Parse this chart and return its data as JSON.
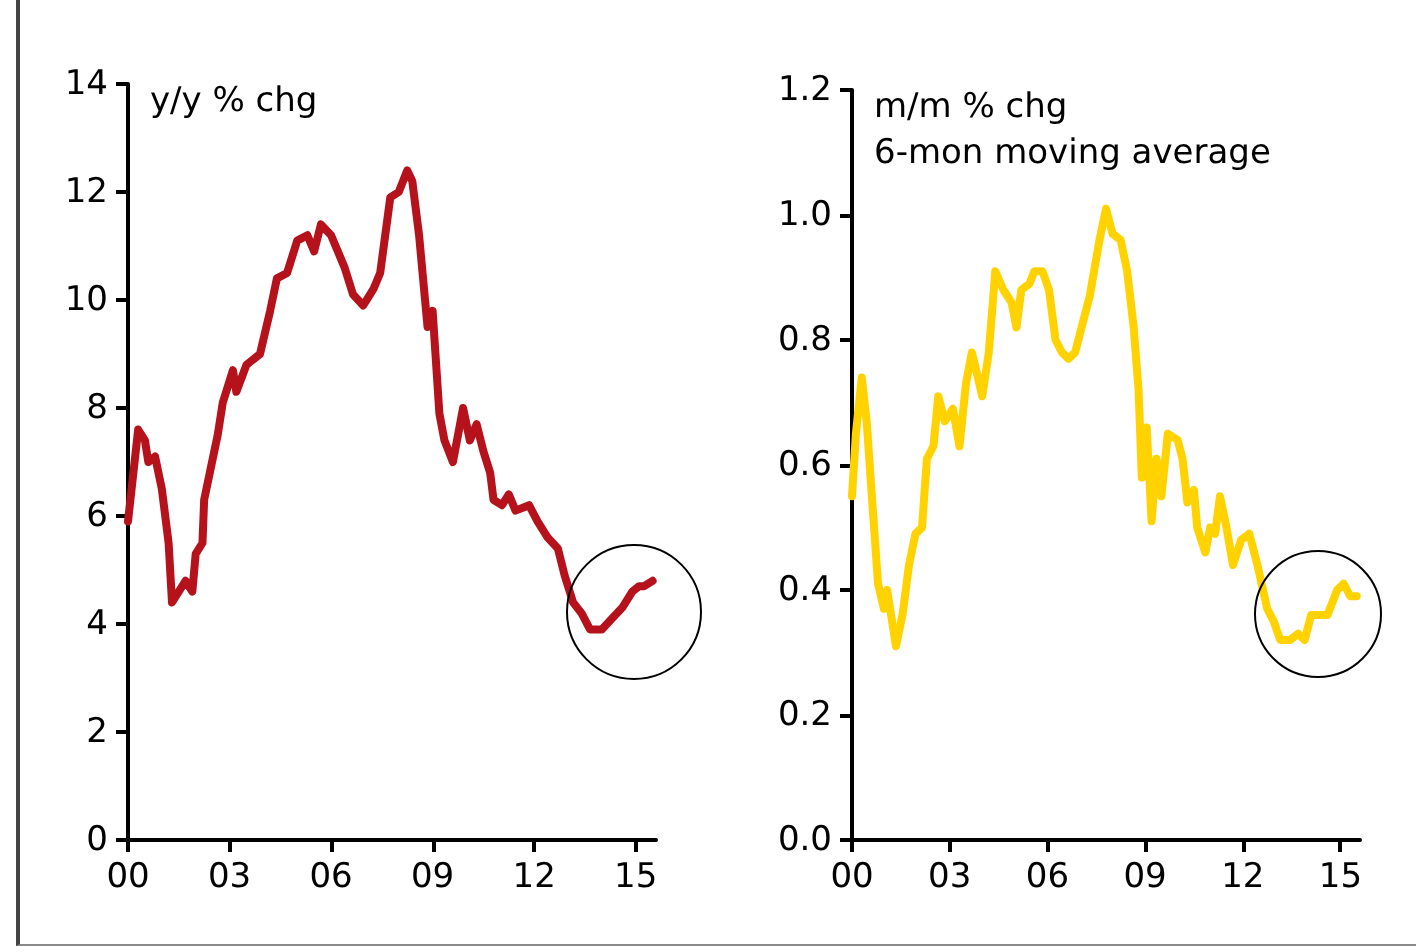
{
  "chart_data": [
    {
      "type": "line",
      "ylabel": "y/y % chg",
      "xlim": [
        2000,
        2015.6
      ],
      "xticks": [
        {
          "value": 2000,
          "label": "00"
        },
        {
          "value": 2003,
          "label": "03"
        },
        {
          "value": 2006,
          "label": "06"
        },
        {
          "value": 2009,
          "label": "09"
        },
        {
          "value": 2012,
          "label": "12"
        },
        {
          "value": 2015,
          "label": "15"
        }
      ],
      "ylim": [
        0,
        14
      ],
      "yticks": [
        0,
        2,
        4,
        6,
        8,
        10,
        12,
        14
      ],
      "series": [
        {
          "color": "#b5121b",
          "x": [
            2000.0,
            2000.3,
            2000.5,
            2000.6,
            2000.8,
            2001.0,
            2001.2,
            2001.3,
            2001.5,
            2001.7,
            2001.9,
            2002.0,
            2002.2,
            2002.25,
            2002.45,
            2002.65,
            2002.8,
            2003.0,
            2003.1,
            2003.2,
            2003.5,
            2003.9,
            2004.2,
            2004.4,
            2004.7,
            2005.0,
            2005.3,
            2005.5,
            2005.7,
            2006.0,
            2006.4,
            2006.65,
            2006.95,
            2007.25,
            2007.45,
            2007.75,
            2008.0,
            2008.25,
            2008.4,
            2008.6,
            2008.85,
            2009.0,
            2009.2,
            2009.35,
            2009.6,
            2009.9,
            2010.1,
            2010.3,
            2010.5,
            2010.7,
            2010.8,
            2011.05,
            2011.25,
            2011.45,
            2011.85,
            2012.1,
            2012.4,
            2012.7,
            2012.9,
            2013.15,
            2013.4,
            2013.65,
            2014.0,
            2014.3,
            2014.6,
            2014.9,
            2015.1,
            2015.25,
            2015.5
          ],
          "values": [
            5.9,
            7.6,
            7.4,
            7.0,
            7.1,
            6.5,
            5.5,
            4.4,
            4.6,
            4.8,
            4.6,
            5.3,
            5.5,
            6.3,
            6.9,
            7.5,
            8.1,
            8.5,
            8.7,
            8.3,
            8.8,
            9.0,
            9.8,
            10.4,
            10.5,
            11.1,
            11.2,
            10.9,
            11.4,
            11.2,
            10.6,
            10.1,
            9.9,
            10.2,
            10.5,
            11.9,
            12.0,
            12.4,
            12.2,
            11.2,
            9.5,
            9.8,
            7.9,
            7.4,
            7.0,
            8.0,
            7.4,
            7.7,
            7.2,
            6.8,
            6.3,
            6.2,
            6.4,
            6.1,
            6.2,
            5.9,
            5.6,
            5.4,
            4.9,
            4.4,
            4.2,
            3.9,
            3.9,
            4.1,
            4.3,
            4.6,
            4.7,
            4.7,
            4.8
          ]
        }
      ]
    },
    {
      "type": "line",
      "ylabel": "m/m % chg\n6-mon moving average",
      "xlim": [
        2000,
        2015.6
      ],
      "xticks": [
        {
          "value": 2000,
          "label": "00"
        },
        {
          "value": 2003,
          "label": "03"
        },
        {
          "value": 2006,
          "label": "06"
        },
        {
          "value": 2009,
          "label": "09"
        },
        {
          "value": 2012,
          "label": "12"
        },
        {
          "value": 2015,
          "label": "15"
        }
      ],
      "ylim": [
        0,
        1.2
      ],
      "yticks": [
        {
          "value": 0,
          "label": "0.0"
        },
        {
          "value": 0.2,
          "label": "0.2"
        },
        {
          "value": 0.4,
          "label": "0.4"
        },
        {
          "value": 0.6,
          "label": "0.6"
        },
        {
          "value": 0.8,
          "label": "0.8"
        },
        {
          "value": 1.0,
          "label": "1.0"
        },
        {
          "value": 1.2,
          "label": "1.2"
        }
      ],
      "series": [
        {
          "color": "#ffd200",
          "x": [
            2000.0,
            2000.12,
            2000.3,
            2000.45,
            2000.65,
            2000.8,
            2000.98,
            2001.08,
            2001.2,
            2001.35,
            2001.55,
            2001.75,
            2001.95,
            2002.15,
            2002.3,
            2002.5,
            2002.65,
            2002.85,
            2003.1,
            2003.3,
            2003.5,
            2003.68,
            2003.82,
            2004.0,
            2004.2,
            2004.4,
            2004.65,
            2004.9,
            2005.05,
            2005.2,
            2005.45,
            2005.6,
            2005.85,
            2006.05,
            2006.25,
            2006.45,
            2006.65,
            2006.85,
            2007.05,
            2007.3,
            2007.6,
            2007.8,
            2008.0,
            2008.25,
            2008.45,
            2008.65,
            2008.8,
            2008.9,
            2009.05,
            2009.2,
            2009.35,
            2009.5,
            2009.7,
            2010.0,
            2010.15,
            2010.3,
            2010.5,
            2010.6,
            2010.85,
            2011.0,
            2011.15,
            2011.3,
            2011.5,
            2011.7,
            2011.95,
            2012.2,
            2012.45,
            2012.75,
            2012.95,
            2013.15,
            2013.45,
            2013.7,
            2013.9,
            2014.1,
            2014.3,
            2014.6,
            2014.9,
            2015.1,
            2015.3,
            2015.5
          ],
          "values": [
            0.55,
            0.65,
            0.74,
            0.67,
            0.52,
            0.41,
            0.37,
            0.4,
            0.36,
            0.31,
            0.36,
            0.44,
            0.49,
            0.5,
            0.61,
            0.63,
            0.71,
            0.67,
            0.69,
            0.63,
            0.73,
            0.78,
            0.75,
            0.71,
            0.78,
            0.91,
            0.88,
            0.86,
            0.82,
            0.88,
            0.89,
            0.91,
            0.91,
            0.88,
            0.8,
            0.78,
            0.77,
            0.78,
            0.82,
            0.87,
            0.96,
            1.01,
            0.97,
            0.96,
            0.91,
            0.82,
            0.72,
            0.58,
            0.66,
            0.51,
            0.61,
            0.55,
            0.65,
            0.64,
            0.61,
            0.54,
            0.56,
            0.5,
            0.46,
            0.5,
            0.49,
            0.55,
            0.5,
            0.44,
            0.48,
            0.49,
            0.44,
            0.37,
            0.35,
            0.32,
            0.32,
            0.33,
            0.32,
            0.36,
            0.36,
            0.36,
            0.4,
            0.41,
            0.39,
            0.39
          ]
        }
      ]
    }
  ]
}
